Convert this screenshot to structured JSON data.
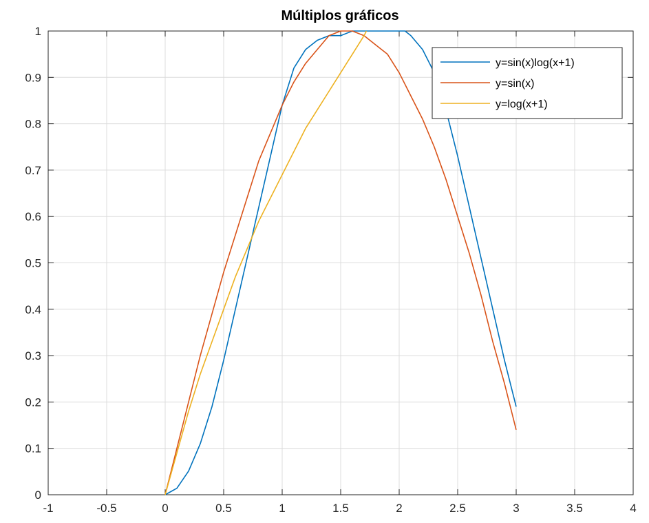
{
  "chart_data": {
    "type": "line",
    "title": "Múltiplos gráficos",
    "xlabel": "",
    "ylabel": "",
    "xlim": [
      -1,
      4
    ],
    "ylim": [
      0,
      1
    ],
    "xticks": [
      -1,
      -0.5,
      0,
      0.5,
      1,
      1.5,
      2,
      2.5,
      3,
      3.5,
      4
    ],
    "xtick_labels": [
      "-1",
      "-0.5",
      "0",
      "0.5",
      "1",
      "1.5",
      "2",
      "2.5",
      "3",
      "3.5",
      "4"
    ],
    "yticks": [
      0,
      0.1,
      0.2,
      0.3,
      0.4,
      0.5,
      0.6,
      0.7,
      0.8,
      0.9,
      1
    ],
    "ytick_labels": [
      "0",
      "0.1",
      "0.2",
      "0.3",
      "0.4",
      "0.5",
      "0.6",
      "0.7",
      "0.8",
      "0.9",
      "1"
    ],
    "grid": true,
    "legend_position": "top-right",
    "series": [
      {
        "name": "y=sin(x)log(x+1)",
        "color": "#0072BD",
        "x": [
          0,
          0.1,
          0.2,
          0.3,
          0.4,
          0.5,
          0.6,
          0.7,
          0.8,
          0.9,
          1.0,
          1.1,
          1.2,
          1.3,
          1.4,
          1.5,
          1.6,
          1.7,
          1.75,
          1.8,
          1.9,
          2.0,
          2.05,
          2.1,
          2.2,
          2.3,
          2.4,
          2.5,
          2.6,
          2.7,
          2.8,
          2.9,
          3.0
        ],
        "y": [
          0,
          0.014,
          0.051,
          0.11,
          0.19,
          0.29,
          0.4,
          0.51,
          0.62,
          0.73,
          0.84,
          0.92,
          0.96,
          0.98,
          0.99,
          0.99,
          1.0,
          1.0,
          1.0,
          1.0,
          1.0,
          1.0,
          1.0,
          0.99,
          0.96,
          0.91,
          0.83,
          0.73,
          0.62,
          0.51,
          0.4,
          0.29,
          0.19
        ]
      },
      {
        "name": "y=sin(x)",
        "color": "#D95319",
        "x": [
          0,
          0.1,
          0.2,
          0.3,
          0.4,
          0.5,
          0.6,
          0.7,
          0.8,
          0.9,
          1.0,
          1.1,
          1.2,
          1.3,
          1.4,
          1.5,
          1.57,
          1.6,
          1.7,
          1.8,
          1.9,
          2.0,
          2.1,
          2.2,
          2.3,
          2.4,
          2.5,
          2.6,
          2.7,
          2.8,
          2.9,
          3.0
        ],
        "y": [
          0,
          0.1,
          0.2,
          0.3,
          0.39,
          0.48,
          0.56,
          0.64,
          0.72,
          0.78,
          0.84,
          0.89,
          0.93,
          0.96,
          0.99,
          1.0,
          1.0,
          1.0,
          0.99,
          0.97,
          0.95,
          0.91,
          0.86,
          0.81,
          0.75,
          0.68,
          0.6,
          0.52,
          0.43,
          0.33,
          0.24,
          0.14
        ]
      },
      {
        "name": "y=log(x+1)",
        "color": "#EDB120",
        "x": [
          0,
          0.1,
          0.2,
          0.3,
          0.4,
          0.5,
          0.6,
          0.7,
          0.8,
          0.9,
          1.0,
          1.1,
          1.2,
          1.3,
          1.4,
          1.5,
          1.6,
          1.7,
          1.72
        ],
        "y": [
          0,
          0.09,
          0.18,
          0.26,
          0.33,
          0.4,
          0.47,
          0.53,
          0.59,
          0.64,
          0.69,
          0.74,
          0.79,
          0.83,
          0.87,
          0.91,
          0.95,
          0.99,
          1.0
        ]
      }
    ]
  }
}
